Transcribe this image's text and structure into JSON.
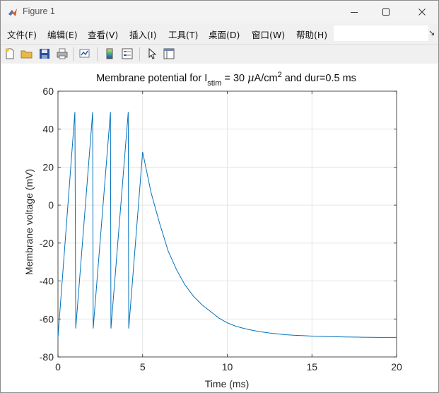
{
  "window": {
    "title": "Figure 1"
  },
  "menu": [
    "文件(F)",
    "编辑(E)",
    "查看(V)",
    "插入(I)",
    "工具(T)",
    "桌面(D)",
    "窗口(W)",
    "帮助(H)"
  ],
  "toolbar": {
    "icons": [
      "new-figure-icon",
      "open-file-icon",
      "save-icon",
      "print-icon",
      "link-plot-icon",
      "colorbar-icon",
      "legend-icon",
      "edit-plot-arrow-icon",
      "property-inspector-icon"
    ]
  },
  "colors": {
    "line": "#0072bd",
    "grid": "#dfdfdf",
    "axis": "#262626"
  },
  "chart_data": {
    "type": "line",
    "title_parts": {
      "before": "Membrane potential for I",
      "subscript": "stim",
      "middle": " = 30 ",
      "mu": "μ",
      "unit": "A/cm",
      "superscript": "2",
      "after": " and dur=0.5 ms"
    },
    "xlabel": "Time (ms)",
    "ylabel": "Membrane voltage (mV)",
    "xlim": [
      0,
      20
    ],
    "ylim": [
      -80,
      60
    ],
    "xticks": [
      0,
      5,
      10,
      15,
      20
    ],
    "yticks": [
      -80,
      -60,
      -40,
      -20,
      0,
      20,
      40,
      60
    ],
    "grid": true,
    "series": [
      {
        "x": [
          0,
          0.03,
          1.0,
          1.05,
          2.05,
          2.08,
          3.1,
          3.13,
          4.15,
          4.18,
          5.0,
          5.5,
          6.0,
          6.5,
          7.0,
          7.5,
          8.0,
          8.5,
          9.0,
          9.5,
          10.0,
          10.5,
          11.0,
          11.5,
          12.0,
          12.5,
          13.0,
          13.5,
          14.0,
          14.5,
          15.0,
          16.0,
          17.0,
          18.0,
          19.0,
          20.0
        ],
        "y": [
          -70,
          -66,
          49,
          -65,
          49,
          -65,
          49,
          -65,
          49,
          -65,
          28,
          6.5,
          -9.5,
          -24,
          -34,
          -42,
          -48,
          -52.5,
          -56,
          -59.5,
          -62,
          -63.8,
          -65,
          -66,
          -66.8,
          -67.4,
          -67.9,
          -68.3,
          -68.6,
          -68.8,
          -69,
          -69.3,
          -69.5,
          -69.6,
          -69.7,
          -69.7
        ]
      }
    ]
  }
}
